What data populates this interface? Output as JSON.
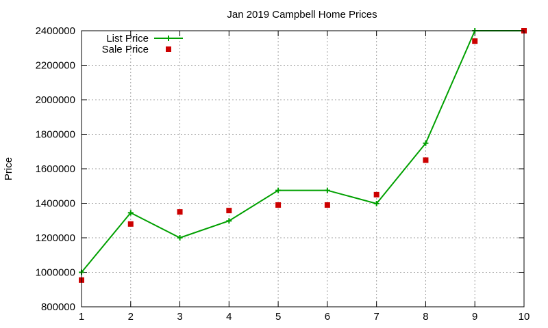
{
  "chart_data": {
    "type": "line",
    "title": "Jan 2019 Campbell Home Prices",
    "xlabel": "",
    "ylabel": "Price",
    "x": [
      1,
      2,
      3,
      4,
      5,
      6,
      7,
      8,
      9,
      10
    ],
    "xlim": [
      1,
      10
    ],
    "ylim": [
      800000,
      2400000
    ],
    "yticks": [
      800000,
      1000000,
      1200000,
      1400000,
      1600000,
      1800000,
      2000000,
      2200000,
      2400000
    ],
    "xticks": [
      1,
      2,
      3,
      4,
      5,
      6,
      7,
      8,
      9,
      10
    ],
    "grid": true,
    "legend_position": "top-left",
    "series": [
      {
        "name": "List Price",
        "style": "line-with-plus-markers",
        "color": "#00a000",
        "values": [
          1000000,
          1345000,
          1200000,
          1298000,
          1475000,
          1475000,
          1398000,
          1748000,
          2400000,
          2400000
        ]
      },
      {
        "name": "Sale Price",
        "style": "square-markers",
        "color": "#cc0000",
        "values": [
          955000,
          1280000,
          1350000,
          1358000,
          1390000,
          1390000,
          1450000,
          1650000,
          2340000,
          2400000
        ]
      }
    ]
  }
}
